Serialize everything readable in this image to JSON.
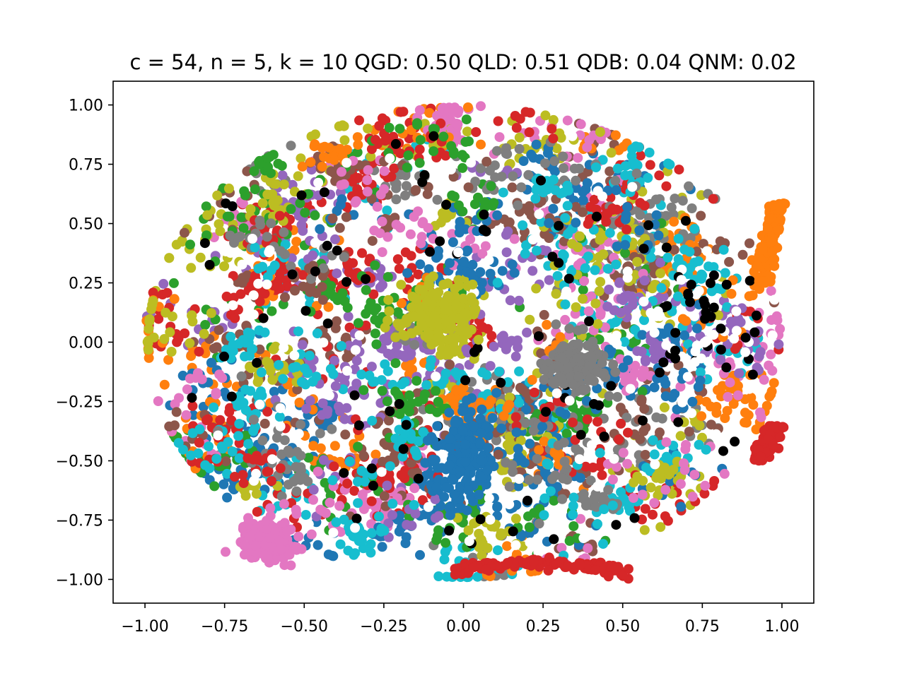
{
  "chart_data": {
    "type": "scatter",
    "title": "c = 54, n = 5, k = 10 QGD: 0.50 QLD: 0.51 QDB: 0.04 QNM: 0.02",
    "xlabel": "",
    "ylabel": "",
    "xlim": [
      -1.1,
      1.1
    ],
    "ylim": [
      -1.1,
      1.1
    ],
    "grid": false,
    "legend": "none",
    "xticks": [
      -1.0,
      -0.75,
      -0.5,
      -0.25,
      0.0,
      0.25,
      0.5,
      0.75,
      1.0
    ],
    "yticks": [
      -1.0,
      -0.75,
      -0.5,
      -0.25,
      0.0,
      0.25,
      0.5,
      0.75,
      1.0
    ],
    "xtick_labels": [
      "−1.00",
      "−0.75",
      "−0.50",
      "−0.25",
      "0.00",
      "0.25",
      "0.50",
      "0.75",
      "1.00"
    ],
    "ytick_labels": [
      "−1.00",
      "−0.75",
      "−0.50",
      "−0.25",
      "0.00",
      "0.25",
      "0.50",
      "0.75",
      "1.00"
    ],
    "colors": [
      "#1f77b4",
      "#ff7f0e",
      "#2ca02c",
      "#d62728",
      "#9467bd",
      "#8c564b",
      "#e377c2",
      "#7f7f7f",
      "#bcbd22",
      "#17becf",
      "#000000",
      "#ffffff"
    ],
    "marker": "o",
    "cluster_count": 54,
    "point_cloud": "dense roughly circular cloud of points within the unit disk, one color per cluster",
    "notable_clusters": [
      {
        "color": "#d62728",
        "shape": "arc",
        "x_range": [
          -0.05,
          0.52
        ],
        "y_range": [
          -1.0,
          -0.9
        ]
      },
      {
        "color": "#e377c2",
        "shape": "blob",
        "x_range": [
          -0.7,
          -0.53
        ],
        "y_range": [
          -0.93,
          -0.75
        ]
      },
      {
        "color": "#ff7f0e",
        "shape": "arc",
        "x_range": [
          0.88,
          1.0
        ],
        "y_range": [
          0.25,
          0.59
        ]
      },
      {
        "color": "#d62728",
        "shape": "arc",
        "x_range": [
          0.85,
          1.0
        ],
        "y_range": [
          -0.5,
          -0.35
        ]
      },
      {
        "color": "#1f77b4",
        "shape": "blob",
        "x_range": [
          -0.1,
          0.1
        ],
        "y_range": [
          -0.65,
          -0.3
        ]
      },
      {
        "color": "#bcbd22",
        "shape": "blob",
        "x_range": [
          -0.2,
          0.05
        ],
        "y_range": [
          0.0,
          0.25
        ]
      },
      {
        "color": "#7f7f7f",
        "shape": "blob",
        "x_range": [
          0.25,
          0.45
        ],
        "y_range": [
          -0.2,
          0.0
        ]
      }
    ]
  }
}
